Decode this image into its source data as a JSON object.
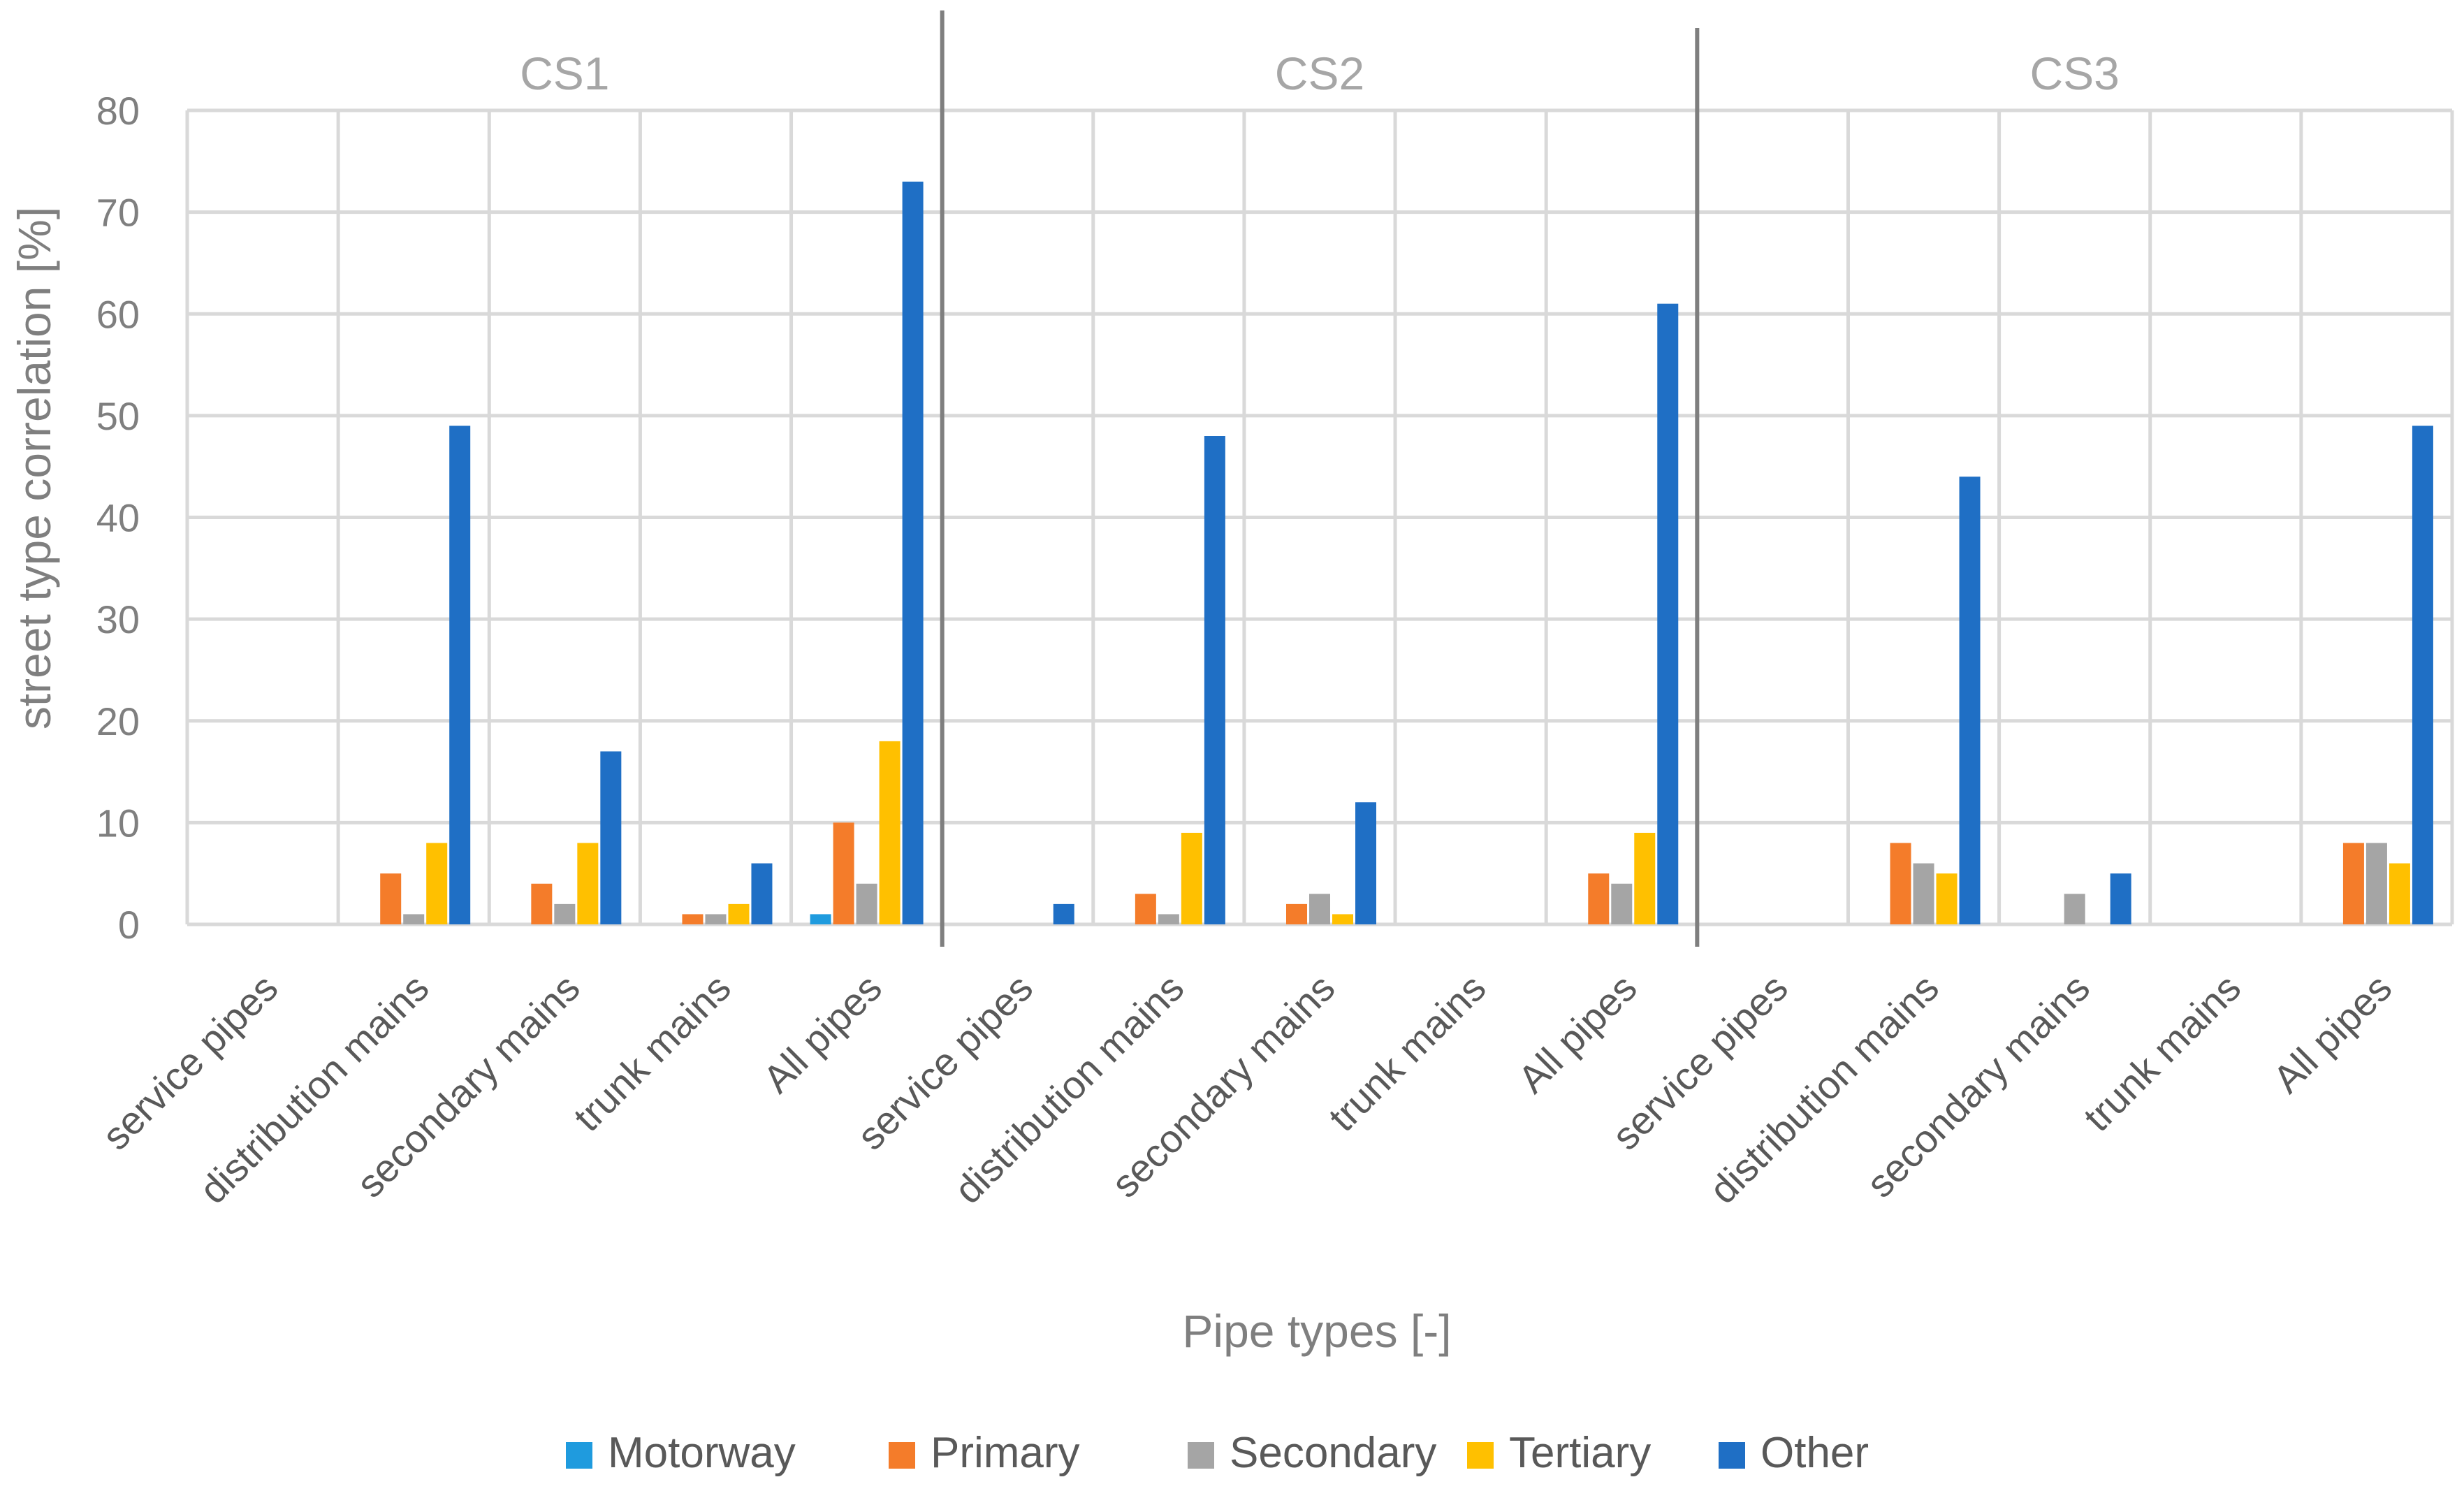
{
  "chart_data": {
    "type": "bar",
    "title": "",
    "xlabel": "Pipe types [-]",
    "ylabel": "street type correlation [%]",
    "ylim": [
      0,
      80
    ],
    "yticks": [
      0,
      10,
      20,
      30,
      40,
      50,
      60,
      70,
      80
    ],
    "grid": true,
    "legend_position": "bottom",
    "groups": [
      "CS1",
      "CS2",
      "CS3"
    ],
    "categories": [
      "service pipes",
      "distribution mains",
      "secondary mains",
      "trunk mains",
      "All pipes",
      "service pipes",
      "distribution mains",
      "secondary mains",
      "trunk mains",
      "All pipes",
      "service pipes",
      "distribution mains",
      "secondary mains",
      "trunk mains",
      "All pipes"
    ],
    "series": [
      {
        "name": "Motorway",
        "color": "#1f9bde",
        "values": [
          0,
          0,
          0,
          0,
          1,
          0,
          0,
          0,
          0,
          0,
          0,
          0,
          0,
          0,
          0
        ]
      },
      {
        "name": "Primary",
        "color": "#f47c2a",
        "values": [
          0,
          5,
          4,
          1,
          10,
          0,
          3,
          2,
          0,
          5,
          0,
          8,
          0,
          0,
          8
        ]
      },
      {
        "name": "Secondary",
        "color": "#a5a5a5",
        "values": [
          0,
          1,
          2,
          1,
          4,
          0,
          1,
          3,
          0,
          4,
          0,
          6,
          3,
          0,
          8
        ]
      },
      {
        "name": "Tertiary",
        "color": "#ffc000",
        "values": [
          0,
          8,
          8,
          2,
          18,
          0,
          9,
          1,
          0,
          9,
          0,
          5,
          0,
          0,
          6
        ]
      },
      {
        "name": "Other",
        "color": "#1f6fc5",
        "values": [
          0,
          49,
          17,
          6,
          73,
          2,
          48,
          12,
          0,
          61,
          0,
          44,
          5,
          0,
          49
        ]
      }
    ]
  }
}
